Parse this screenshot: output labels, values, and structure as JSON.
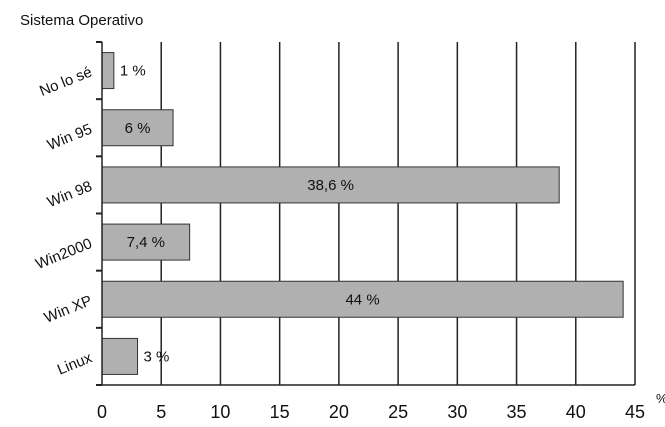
{
  "chart_data": {
    "type": "bar",
    "orientation": "horizontal",
    "title": "Sistema Operativo",
    "xlabel": "%",
    "ylabel": "",
    "categories": [
      "No lo sé",
      "Win 95",
      "Win 98",
      "Win2000",
      "Win XP",
      "Linux"
    ],
    "values": [
      1,
      6,
      38.6,
      7.4,
      44,
      3
    ],
    "data_labels": [
      "1 %",
      "6 %",
      "38,6 %",
      "7,4 %",
      "44 %",
      "3 %"
    ],
    "xlim": [
      0,
      45
    ],
    "xticks": [
      0,
      5,
      10,
      15,
      20,
      25,
      30,
      35,
      40,
      45
    ],
    "grid": "vertical",
    "legend": "none",
    "colors": {
      "bar": "#b0b0b0",
      "bar_stroke": "#333333",
      "grid": "#222222",
      "text": "#111111"
    }
  }
}
